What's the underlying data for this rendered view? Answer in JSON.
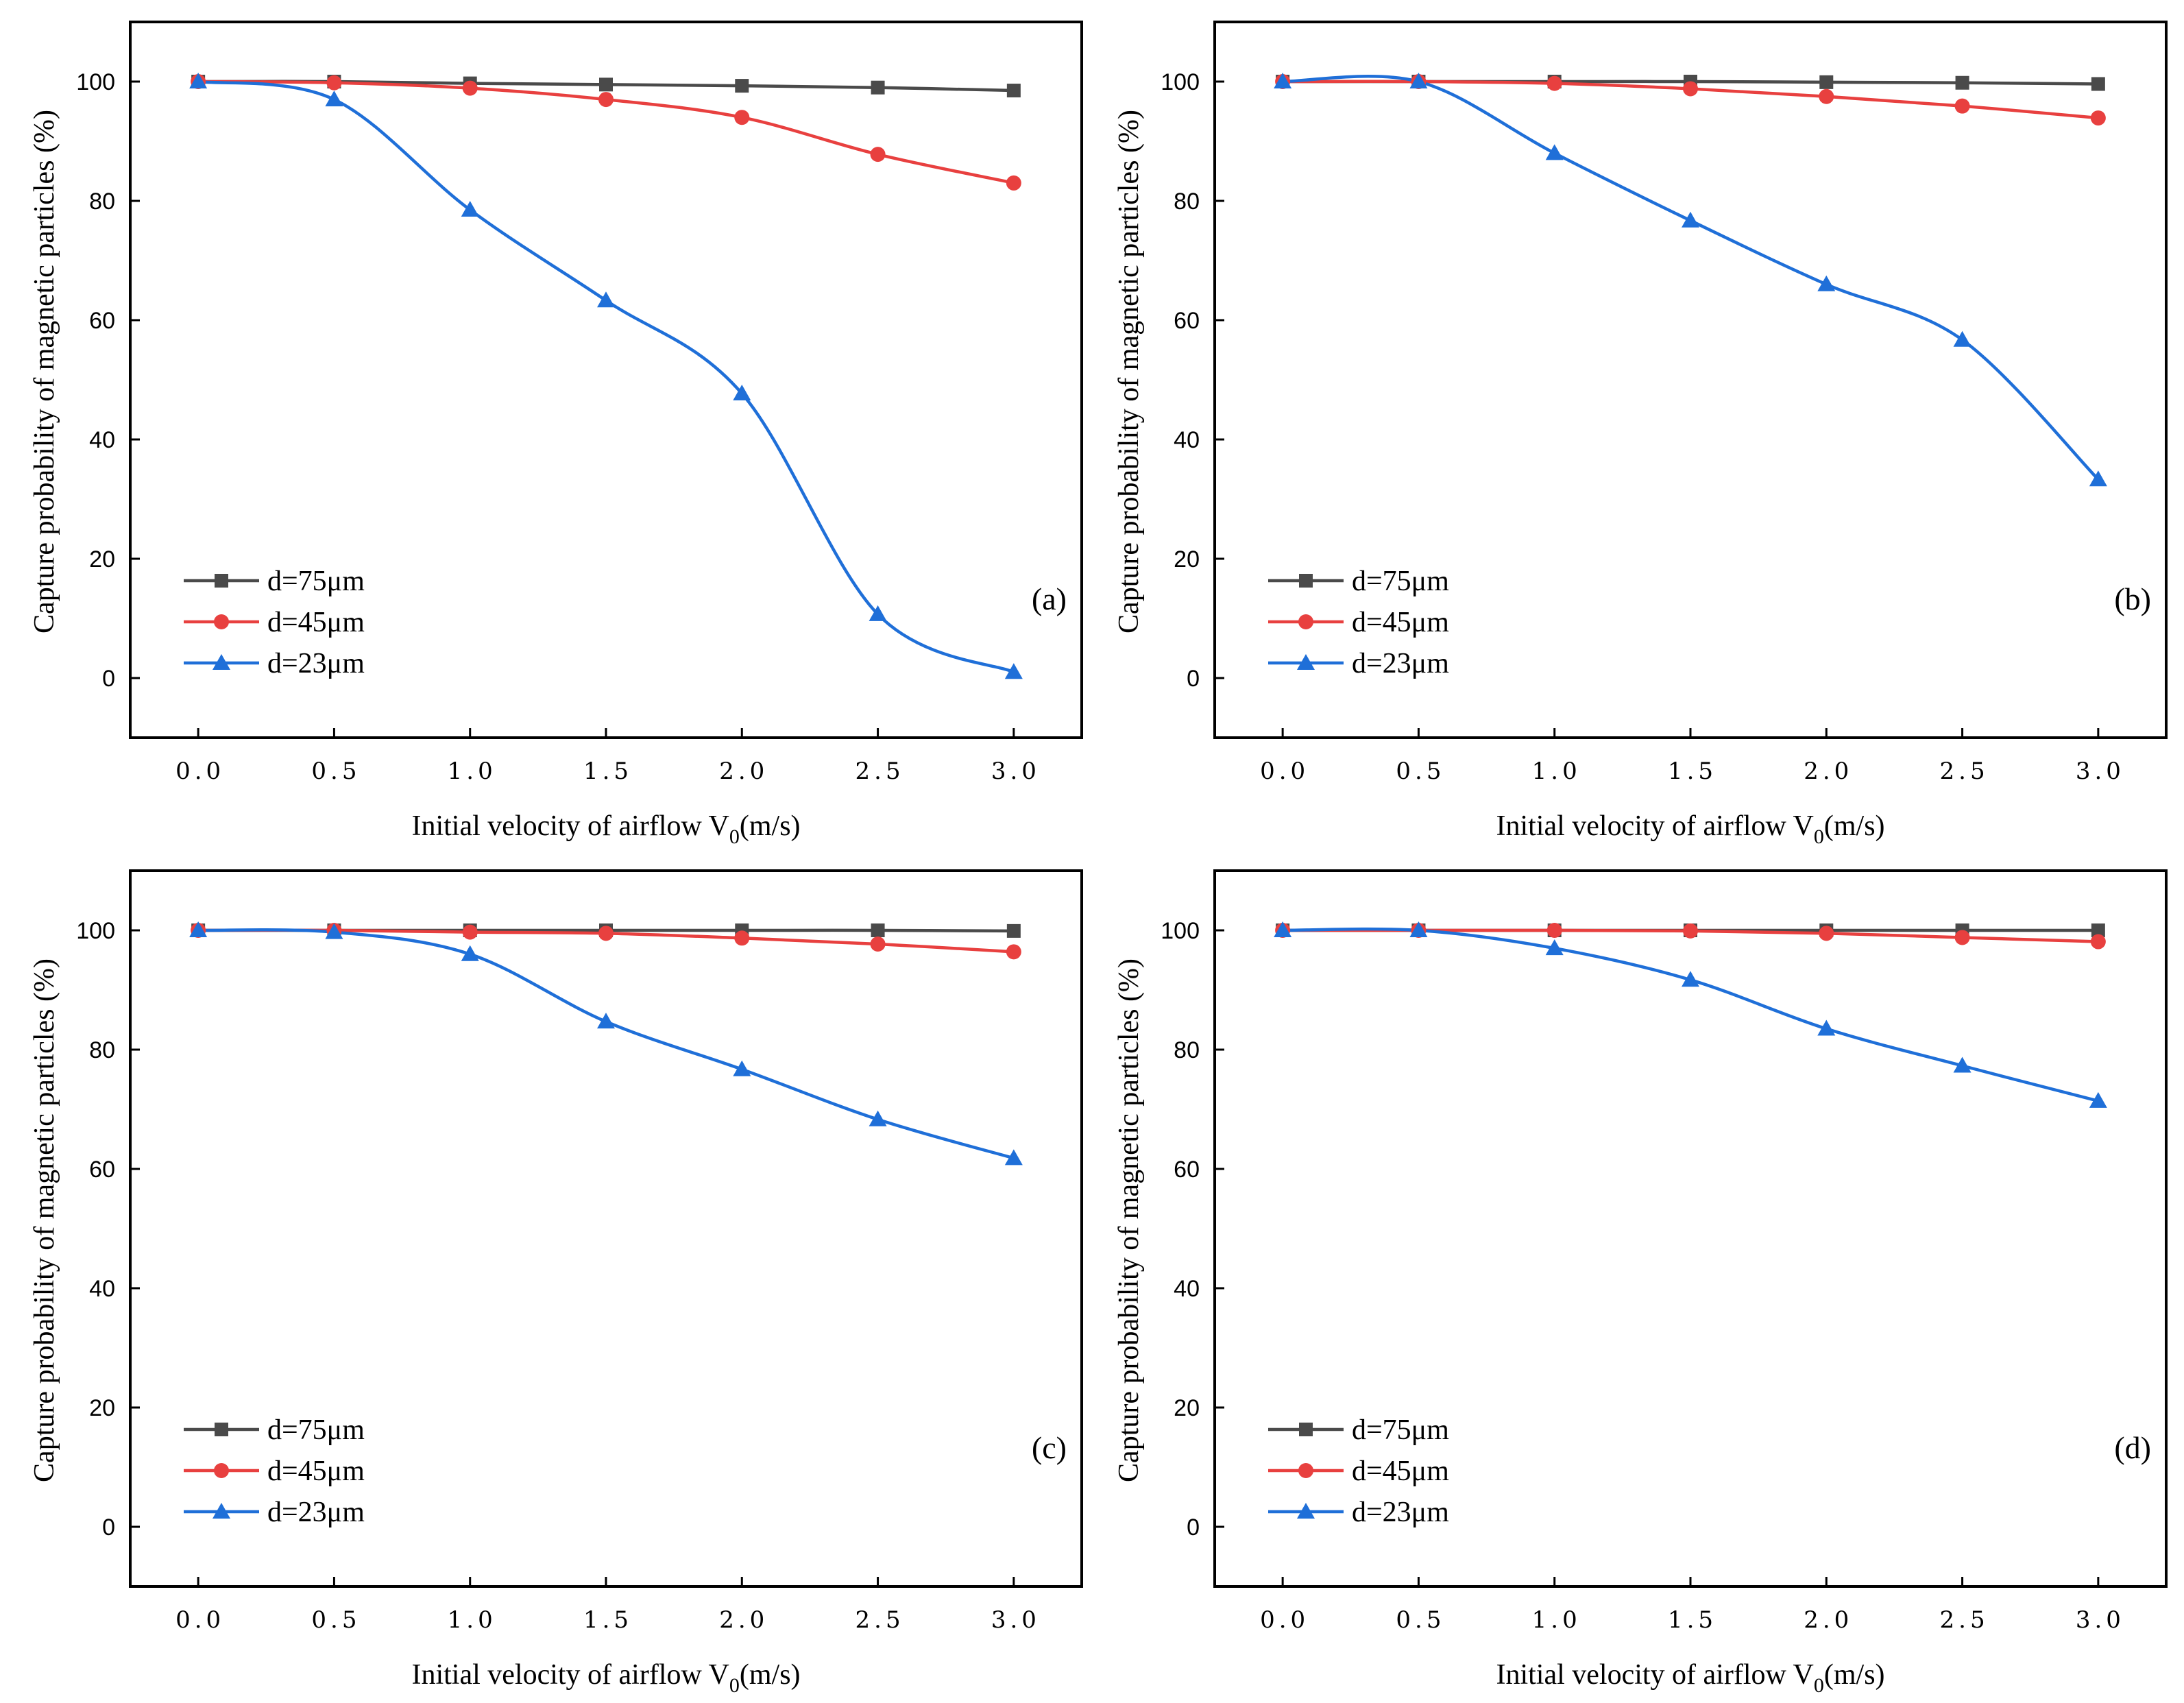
{
  "chart_data": [
    {
      "type": "line",
      "panel_label": "(a)",
      "xlabel": "Initial velocity of airflow V",
      "xlabel_sub": "0",
      "xlabel_suffix": "(m/s)",
      "ylabel": "Capture probability of magnetic particles (%)",
      "x": [
        0.0,
        0.5,
        1.0,
        1.5,
        2.0,
        2.5,
        3.0
      ],
      "xticks": [
        "0.0",
        "0.5",
        "1.0",
        "1.5",
        "2.0",
        "2.5",
        "3.0"
      ],
      "yticks": [
        "0",
        "20",
        "40",
        "60",
        "80",
        "100"
      ],
      "xlim": [
        -0.25,
        3.25
      ],
      "ylim": [
        -10,
        110
      ],
      "legend_position": "bottom-left",
      "series": [
        {
          "name": "d=75μm",
          "marker": "square",
          "color": "#4a4a4a",
          "values": [
            100,
            100,
            99.7,
            99.5,
            99.3,
            99,
            98.5
          ]
        },
        {
          "name": "d=45μm",
          "marker": "circle",
          "color": "#e8403f",
          "values": [
            100,
            99.8,
            98.9,
            97.0,
            94.0,
            87.8,
            83.0
          ]
        },
        {
          "name": "d=23μm",
          "marker": "triangle",
          "color": "#1f6fd8",
          "values": [
            100,
            97.0,
            78.5,
            63.3,
            47.7,
            10.7,
            1.0
          ]
        }
      ]
    },
    {
      "type": "line",
      "panel_label": "(b)",
      "xlabel": "Initial velocity of airflow V",
      "xlabel_sub": "0",
      "xlabel_suffix": "(m/s)",
      "ylabel": "Capture probability of magnetic particles (%)",
      "x": [
        0.0,
        0.5,
        1.0,
        1.5,
        2.0,
        2.5,
        3.0
      ],
      "xticks": [
        "0.0",
        "0.5",
        "1.0",
        "1.5",
        "2.0",
        "2.5",
        "3.0"
      ],
      "yticks": [
        "0",
        "20",
        "40",
        "60",
        "80",
        "100"
      ],
      "xlim": [
        -0.25,
        3.25
      ],
      "ylim": [
        -10,
        110
      ],
      "legend_position": "bottom-left",
      "series": [
        {
          "name": "d=75μm",
          "marker": "square",
          "color": "#4a4a4a",
          "values": [
            100,
            100,
            100,
            100,
            99.9,
            99.8,
            99.6
          ]
        },
        {
          "name": "d=45μm",
          "marker": "circle",
          "color": "#e8403f",
          "values": [
            100,
            100,
            99.7,
            98.8,
            97.5,
            95.9,
            93.9
          ]
        },
        {
          "name": "d=23μm",
          "marker": "triangle",
          "color": "#1f6fd8",
          "values": [
            100,
            100,
            88.0,
            76.7,
            66.0,
            56.7,
            33.3
          ]
        }
      ]
    },
    {
      "type": "line",
      "panel_label": "(c)",
      "xlabel": "Initial velocity of airflow V",
      "xlabel_sub": "0",
      "xlabel_suffix": "(m/s)",
      "ylabel": "Capture probability of magnetic particles (%)",
      "x": [
        0.0,
        0.5,
        1.0,
        1.5,
        2.0,
        2.5,
        3.0
      ],
      "xticks": [
        "0.0",
        "0.5",
        "1.0",
        "1.5",
        "2.0",
        "2.5",
        "3.0"
      ],
      "yticks": [
        "0",
        "20",
        "40",
        "60",
        "80",
        "100"
      ],
      "xlim": [
        -0.25,
        3.25
      ],
      "ylim": [
        -10,
        110
      ],
      "legend_position": "bottom-left",
      "series": [
        {
          "name": "d=75μm",
          "marker": "square",
          "color": "#4a4a4a",
          "values": [
            100,
            100,
            100,
            100,
            100,
            100,
            99.9
          ]
        },
        {
          "name": "d=45μm",
          "marker": "circle",
          "color": "#e8403f",
          "values": [
            100,
            100,
            99.7,
            99.5,
            98.7,
            97.7,
            96.4
          ]
        },
        {
          "name": "d=23μm",
          "marker": "triangle",
          "color": "#1f6fd8",
          "values": [
            100,
            99.7,
            96.0,
            84.7,
            76.7,
            68.3,
            61.8
          ]
        }
      ]
    },
    {
      "type": "line",
      "panel_label": "(d)",
      "xlabel": "Initial velocity of airflow V",
      "xlabel_sub": "0",
      "xlabel_suffix": "(m/s)",
      "ylabel": "Capture probability of magnetic particles (%)",
      "x": [
        0.0,
        0.5,
        1.0,
        1.5,
        2.0,
        2.5,
        3.0
      ],
      "xticks": [
        "0.0",
        "0.5",
        "1.0",
        "1.5",
        "2.0",
        "2.5",
        "3.0"
      ],
      "yticks": [
        "0",
        "20",
        "40",
        "60",
        "80",
        "100"
      ],
      "xlim": [
        -0.25,
        3.25
      ],
      "ylim": [
        -10,
        110
      ],
      "legend_position": "bottom-left",
      "series": [
        {
          "name": "d=75μm",
          "marker": "square",
          "color": "#4a4a4a",
          "values": [
            100,
            100,
            100,
            100,
            100,
            100,
            100
          ]
        },
        {
          "name": "d=45μm",
          "marker": "circle",
          "color": "#e8403f",
          "values": [
            100,
            100,
            100,
            99.9,
            99.5,
            98.8,
            98.1
          ]
        },
        {
          "name": "d=23μm",
          "marker": "triangle",
          "color": "#1f6fd8",
          "values": [
            100,
            100,
            97.0,
            91.7,
            83.5,
            77.3,
            71.4
          ]
        }
      ]
    }
  ]
}
